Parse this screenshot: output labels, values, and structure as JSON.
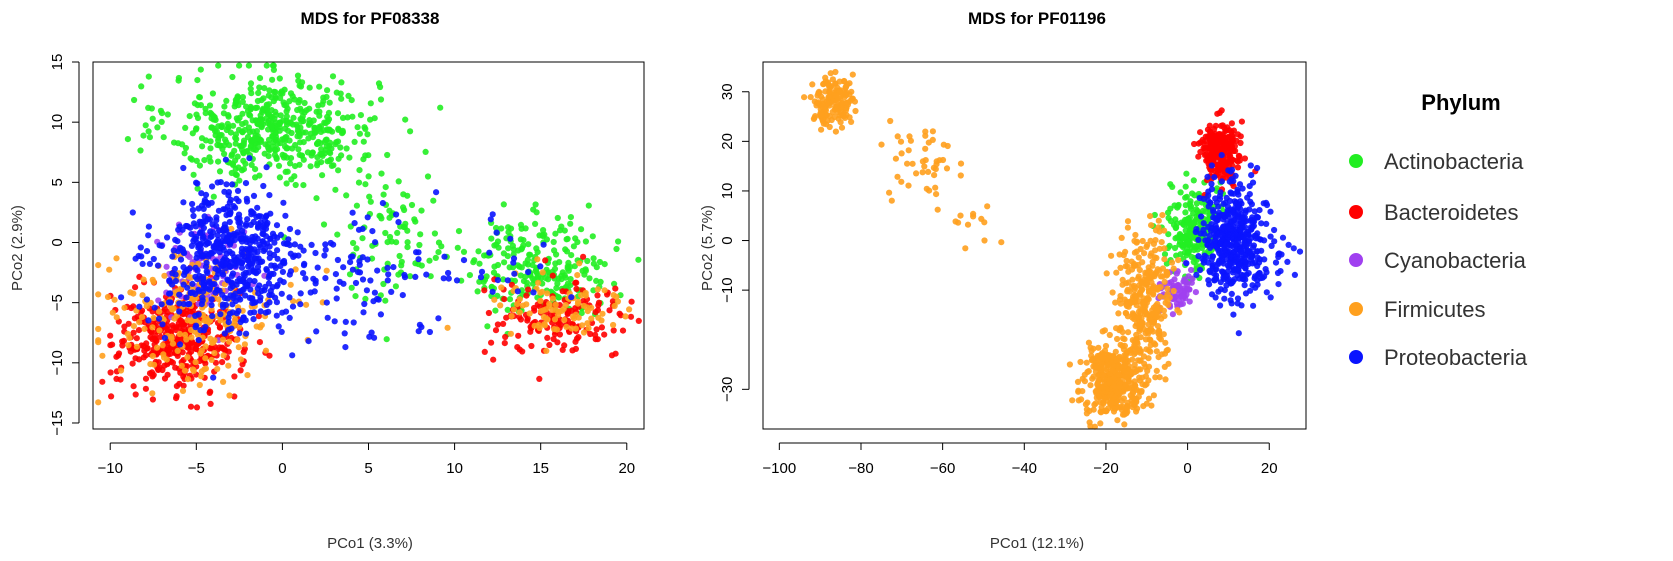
{
  "legend": {
    "title": "Phylum",
    "placement": "right",
    "items": [
      {
        "label": "Actinobacteria",
        "color": "#22ee22"
      },
      {
        "label": "Bacteroidetes",
        "color": "#ff0000"
      },
      {
        "label": "Cyanobacteria",
        "color": "#a040f0"
      },
      {
        "label": "Firmicutes",
        "color": "#ffa01e"
      },
      {
        "label": "Proteobacteria",
        "color": "#0a14ff"
      }
    ]
  },
  "chart_data": [
    {
      "type": "scatter",
      "title": "MDS for PF08338",
      "xlabel": "PCo1 (3.3%)",
      "ylabel": "PCo2 (2.9%)",
      "xlim": [
        -11,
        21
      ],
      "ylim": [
        -15.5,
        15
      ],
      "xticks": [
        -10,
        -5,
        0,
        5,
        10,
        15,
        20
      ],
      "yticks": [
        -15,
        -10,
        -5,
        0,
        5,
        10,
        15
      ],
      "grid": false,
      "series": [
        {
          "name": "Actinobacteria",
          "color": "#22ee22",
          "clusters": [
            {
              "cx": -0.5,
              "cy": 9.5,
              "sx": 3.0,
              "sy": 2.2,
              "n": 520
            },
            {
              "cx": 6.5,
              "cy": 0.5,
              "sx": 2.2,
              "sy": 2.6,
              "n": 90
            },
            {
              "cx": 15.0,
              "cy": -2.0,
              "sx": 2.0,
              "sy": 2.0,
              "n": 230
            }
          ]
        },
        {
          "name": "Bacteroidetes",
          "color": "#ff0000",
          "clusters": [
            {
              "cx": -6.0,
              "cy": -8.0,
              "sx": 1.8,
              "sy": 2.1,
              "n": 380
            },
            {
              "cx": 16.0,
              "cy": -6.5,
              "sx": 2.2,
              "sy": 1.6,
              "n": 150
            }
          ]
        },
        {
          "name": "Cyanobacteria",
          "color": "#a040f0",
          "clusters": [
            {
              "cx": -4.5,
              "cy": -2.0,
              "sx": 1.4,
              "sy": 2.0,
              "n": 90
            }
          ]
        },
        {
          "name": "Firmicutes",
          "color": "#ffa01e",
          "clusters": [
            {
              "cx": -5.0,
              "cy": -6.0,
              "sx": 2.4,
              "sy": 2.6,
              "n": 240
            },
            {
              "cx": 16.0,
              "cy": -5.5,
              "sx": 2.0,
              "sy": 1.6,
              "n": 90
            }
          ]
        },
        {
          "name": "Proteobacteria",
          "color": "#0a14ff",
          "clusters": [
            {
              "cx": -3.0,
              "cy": -1.5,
              "sx": 2.1,
              "sy": 3.0,
              "n": 560
            },
            {
              "cx": 4.0,
              "cy": -3.0,
              "sx": 2.6,
              "sy": 2.6,
              "n": 90
            },
            {
              "cx": 13.0,
              "cy": -1.5,
              "sx": 1.6,
              "sy": 2.0,
              "n": 20
            }
          ]
        }
      ]
    },
    {
      "type": "scatter",
      "title": "MDS for PF01196",
      "xlabel": "PCo1 (12.1%)",
      "ylabel": "PCo2 (5.7%)",
      "xlim": [
        -104,
        29
      ],
      "ylim": [
        -38,
        36
      ],
      "xticks": [
        -100,
        -80,
        -60,
        -40,
        -20,
        0,
        20
      ],
      "yticks": [
        30,
        20,
        10,
        0,
        -10,
        -30
      ],
      "grid": false,
      "series": [
        {
          "name": "Actinobacteria",
          "color": "#22ee22",
          "clusters": [
            {
              "cx": 1.5,
              "cy": 2.5,
              "sx": 3.0,
              "sy": 4.5,
              "n": 220
            }
          ]
        },
        {
          "name": "Bacteroidetes",
          "color": "#ff0000",
          "clusters": [
            {
              "cx": 8.0,
              "cy": 18.0,
              "sx": 2.3,
              "sy": 3.0,
              "n": 260
            }
          ]
        },
        {
          "name": "Cyanobacteria",
          "color": "#a040f0",
          "clusters": [
            {
              "cx": -3.0,
              "cy": -10.5,
              "sx": 2.0,
              "sy": 2.0,
              "n": 70
            }
          ]
        },
        {
          "name": "Firmicutes",
          "color": "#ffa01e",
          "clusters": [
            {
              "cx": -87.0,
              "cy": 28.0,
              "sx": 2.5,
              "sy": 2.5,
              "n": 160
            },
            {
              "cx": -65.0,
              "cy": 16.0,
              "sx": 4.0,
              "sy": 4.0,
              "n": 45
            },
            {
              "cx": -52.0,
              "cy": 4.0,
              "sx": 3.0,
              "sy": 2.0,
              "n": 12
            },
            {
              "cx": -10.0,
              "cy": -12.0,
              "sx": 3.5,
              "sy": 6.5,
              "n": 320
            },
            {
              "cx": -18.0,
              "cy": -28.0,
              "sx": 3.8,
              "sy": 3.5,
              "n": 380
            }
          ]
        },
        {
          "name": "Proteobacteria",
          "color": "#0a14ff",
          "clusters": [
            {
              "cx": 11.0,
              "cy": 0.0,
              "sx": 4.0,
              "sy": 5.5,
              "n": 480
            },
            {
              "cx": 22.0,
              "cy": -4.0,
              "sx": 3.0,
              "sy": 2.0,
              "n": 15
            }
          ]
        }
      ]
    }
  ]
}
